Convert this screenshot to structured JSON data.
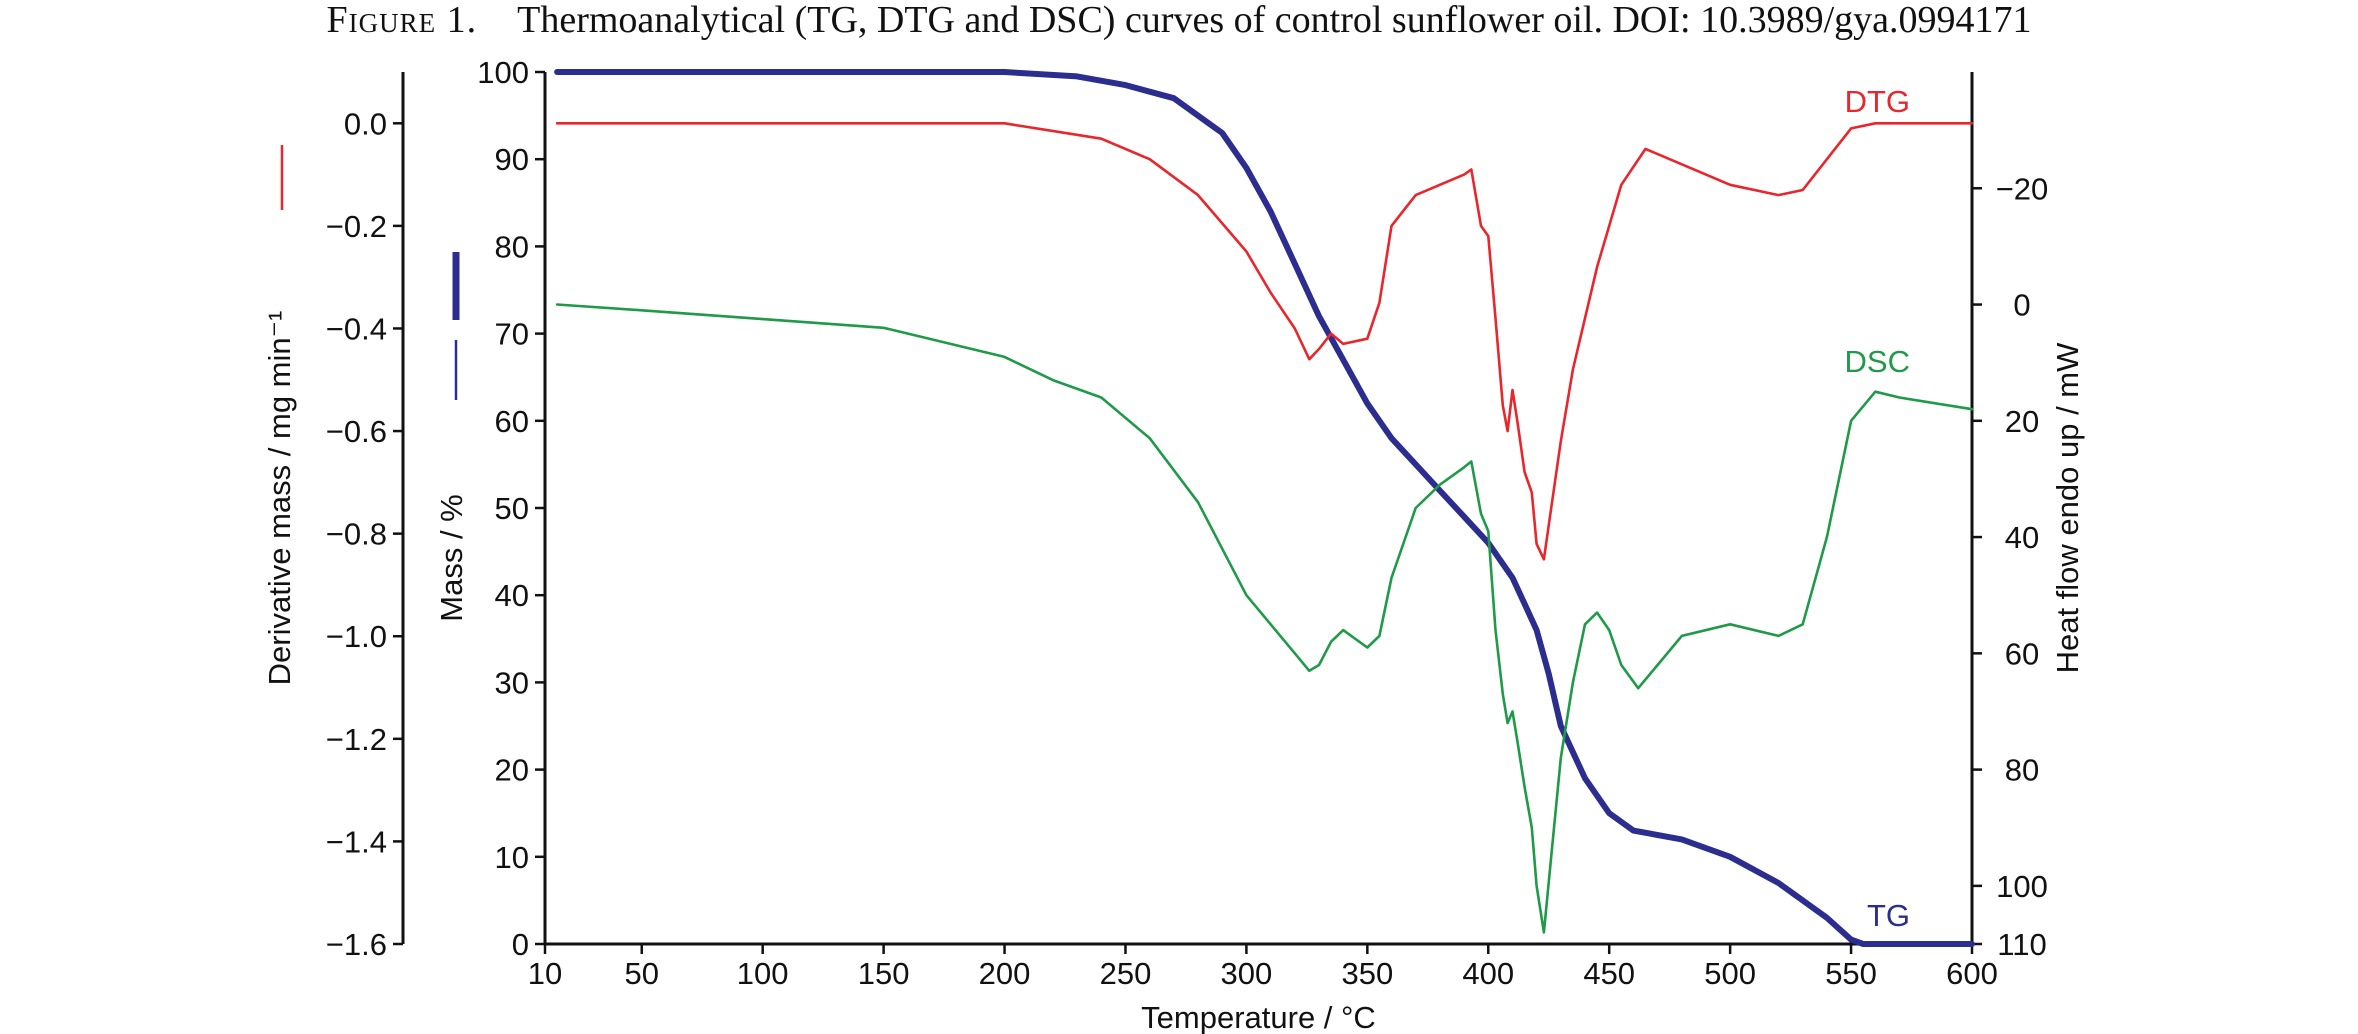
{
  "caption": {
    "label": "Figure 1.",
    "text": "Thermoanalytical (TG, DTG and DSC) curves of control sunflower oil. DOI: 10.3989/gya.0994171"
  },
  "colors": {
    "tg": "#2b2d8f",
    "dtg": "#e8262c",
    "dsc": "#1f9a48",
    "axis": "#111111"
  },
  "chart_data": {
    "type": "line",
    "xlabel": "Temperature / °C",
    "xlim": [
      10,
      600
    ],
    "xticks": [
      10,
      50,
      100,
      150,
      200,
      250,
      300,
      350,
      400,
      450,
      500,
      550,
      600
    ],
    "axes": {
      "mass": {
        "label": "Mass / %",
        "range": [
          0,
          100
        ],
        "ticks": [
          0,
          10,
          20,
          30,
          40,
          50,
          60,
          70,
          80,
          90,
          100
        ]
      },
      "derivative": {
        "label": "Derivative mass / mg min⁻¹",
        "range": [
          -1.6,
          0.1
        ],
        "ticks": [
          -1.6,
          -1.4,
          -1.2,
          -1.0,
          -0.8,
          -0.6,
          -0.4,
          -0.2,
          0.0
        ],
        "tick_labels": [
          "−1.6",
          "−1.4",
          "−1.2",
          "−1.0",
          "−0.8",
          "−0.6",
          "−0.4",
          "−0.2",
          "0.0"
        ]
      },
      "heat_flow": {
        "label": "Heat flow endo up / mW",
        "range": [
          110,
          -40
        ],
        "ticks": [
          110,
          100,
          80,
          60,
          40,
          20,
          0,
          -20
        ],
        "tick_labels": [
          "110",
          "100",
          "80",
          "60",
          "40",
          "20",
          "0",
          "−20"
        ]
      }
    },
    "series": [
      {
        "name": "TG",
        "axis": "mass",
        "color": "#2b2d8f",
        "points": [
          [
            15,
            100
          ],
          [
            200,
            100
          ],
          [
            230,
            99.5
          ],
          [
            250,
            98.5
          ],
          [
            270,
            97
          ],
          [
            290,
            93
          ],
          [
            300,
            89
          ],
          [
            310,
            84
          ],
          [
            320,
            78
          ],
          [
            330,
            72
          ],
          [
            340,
            67
          ],
          [
            350,
            62
          ],
          [
            360,
            58
          ],
          [
            370,
            55
          ],
          [
            380,
            52
          ],
          [
            390,
            49
          ],
          [
            400,
            46
          ],
          [
            410,
            42
          ],
          [
            415,
            39
          ],
          [
            420,
            36
          ],
          [
            425,
            31
          ],
          [
            430,
            25
          ],
          [
            440,
            19
          ],
          [
            450,
            15
          ],
          [
            460,
            13
          ],
          [
            480,
            12
          ],
          [
            500,
            10
          ],
          [
            520,
            7
          ],
          [
            540,
            3
          ],
          [
            550,
            0.5
          ],
          [
            555,
            0
          ],
          [
            600,
            0
          ]
        ]
      },
      {
        "name": "DTG",
        "axis": "derivative",
        "color": "#e8262c",
        "points": [
          [
            15,
            0.0
          ],
          [
            200,
            0.0
          ],
          [
            240,
            -0.03
          ],
          [
            260,
            -0.07
          ],
          [
            280,
            -0.14
          ],
          [
            300,
            -0.25
          ],
          [
            310,
            -0.33
          ],
          [
            320,
            -0.4
          ],
          [
            326,
            -0.46
          ],
          [
            330,
            -0.44
          ],
          [
            335,
            -0.41
          ],
          [
            340,
            -0.43
          ],
          [
            350,
            -0.42
          ],
          [
            355,
            -0.35
          ],
          [
            360,
            -0.2
          ],
          [
            370,
            -0.14
          ],
          [
            380,
            -0.12
          ],
          [
            390,
            -0.1
          ],
          [
            393,
            -0.09
          ],
          [
            397,
            -0.2
          ],
          [
            400,
            -0.22
          ],
          [
            403,
            -0.38
          ],
          [
            406,
            -0.55
          ],
          [
            408,
            -0.6
          ],
          [
            410,
            -0.52
          ],
          [
            412,
            -0.58
          ],
          [
            415,
            -0.68
          ],
          [
            418,
            -0.72
          ],
          [
            420,
            -0.82
          ],
          [
            423,
            -0.85
          ],
          [
            426,
            -0.75
          ],
          [
            430,
            -0.62
          ],
          [
            435,
            -0.48
          ],
          [
            440,
            -0.38
          ],
          [
            445,
            -0.28
          ],
          [
            450,
            -0.2
          ],
          [
            455,
            -0.12
          ],
          [
            465,
            -0.05
          ],
          [
            480,
            -0.08
          ],
          [
            500,
            -0.12
          ],
          [
            520,
            -0.14
          ],
          [
            530,
            -0.13
          ],
          [
            540,
            -0.07
          ],
          [
            550,
            -0.01
          ],
          [
            560,
            0.0
          ],
          [
            600,
            0.0
          ]
        ]
      },
      {
        "name": "DSC",
        "axis": "heat_flow",
        "color": "#1f9a48",
        "points": [
          [
            15,
            0
          ],
          [
            50,
            1
          ],
          [
            100,
            2.5
          ],
          [
            150,
            4
          ],
          [
            200,
            9
          ],
          [
            220,
            13
          ],
          [
            240,
            16
          ],
          [
            260,
            23
          ],
          [
            280,
            34
          ],
          [
            300,
            50
          ],
          [
            320,
            60
          ],
          [
            326,
            63
          ],
          [
            330,
            62
          ],
          [
            335,
            58
          ],
          [
            340,
            56
          ],
          [
            350,
            59
          ],
          [
            355,
            57
          ],
          [
            360,
            47
          ],
          [
            370,
            35
          ],
          [
            380,
            31
          ],
          [
            390,
            28
          ],
          [
            393,
            27
          ],
          [
            397,
            36
          ],
          [
            400,
            39
          ],
          [
            403,
            56
          ],
          [
            406,
            67
          ],
          [
            408,
            72
          ],
          [
            410,
            70
          ],
          [
            412,
            75
          ],
          [
            415,
            83
          ],
          [
            418,
            90
          ],
          [
            420,
            100
          ],
          [
            423,
            108
          ],
          [
            426,
            95
          ],
          [
            430,
            78
          ],
          [
            435,
            65
          ],
          [
            440,
            55
          ],
          [
            445,
            53
          ],
          [
            450,
            56
          ],
          [
            455,
            62
          ],
          [
            462,
            66
          ],
          [
            470,
            62
          ],
          [
            480,
            57
          ],
          [
            500,
            55
          ],
          [
            520,
            57
          ],
          [
            530,
            55
          ],
          [
            540,
            40
          ],
          [
            550,
            20
          ],
          [
            560,
            15
          ],
          [
            570,
            16
          ],
          [
            600,
            18
          ]
        ]
      }
    ],
    "curve_labels": [
      "DTG",
      "DSC",
      "TG"
    ]
  }
}
